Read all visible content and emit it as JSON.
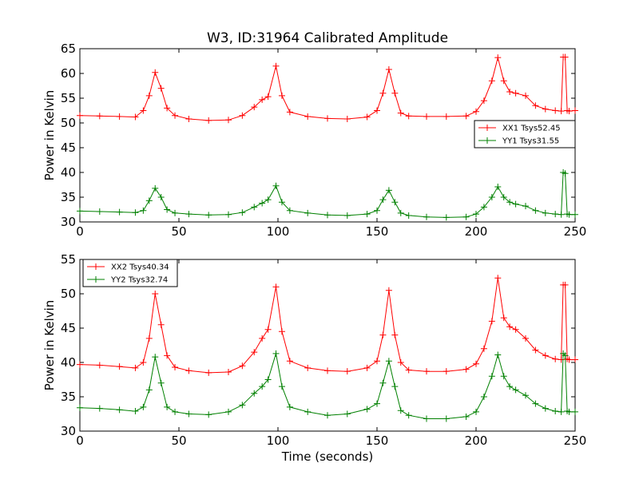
{
  "colors": {
    "xx": "#ff0000",
    "yy": "#008000",
    "axis": "#000000",
    "background": "#ffffff"
  },
  "chart_data": [
    {
      "type": "line",
      "title": "W3, ID:31964 Calibrated Amplitude",
      "xlabel": "",
      "ylabel": "Power in Kelvin",
      "xlim": [
        0,
        250
      ],
      "ylim": [
        30,
        65
      ],
      "xticks": [
        "0",
        "50",
        "100",
        "150",
        "200",
        "250"
      ],
      "yticks": [
        "30",
        "35",
        "40",
        "45",
        "50",
        "55",
        "60",
        "65"
      ],
      "grid": false,
      "legend_position": "center-right",
      "marker": "plus",
      "series": [
        {
          "name": "XX1 Tsys52.45",
          "color": "#ff0000",
          "x": [
            0,
            10,
            20,
            28,
            32,
            35,
            38,
            41,
            44,
            48,
            55,
            65,
            75,
            82,
            88,
            92,
            95,
            99,
            102,
            106,
            115,
            125,
            135,
            145,
            150,
            153,
            156,
            159,
            162,
            166,
            175,
            185,
            195,
            200,
            204,
            208,
            211,
            214,
            217,
            220,
            225,
            230,
            235,
            240,
            243,
            244,
            245,
            246,
            247,
            250
          ],
          "y": [
            51.5,
            51.4,
            51.3,
            51.2,
            52.5,
            55.5,
            60.2,
            57,
            53,
            51.5,
            50.8,
            50.5,
            50.6,
            51.5,
            53.2,
            54.7,
            55.3,
            61.5,
            55.5,
            52.2,
            51.3,
            50.9,
            50.8,
            51.2,
            52.5,
            56,
            60.8,
            56,
            52,
            51.4,
            51.3,
            51.3,
            51.4,
            52.3,
            54.5,
            58.5,
            63.2,
            58.5,
            56.3,
            56,
            55.5,
            53.5,
            52.8,
            52.5,
            52.4,
            63.3,
            63.3,
            52.5,
            52.4,
            52.5
          ]
        },
        {
          "name": "YY1 Tsys31.55",
          "color": "#008000",
          "x": [
            0,
            10,
            20,
            28,
            32,
            35,
            38,
            41,
            44,
            48,
            55,
            65,
            75,
            82,
            88,
            92,
            95,
            99,
            102,
            106,
            115,
            125,
            135,
            145,
            150,
            153,
            156,
            159,
            162,
            166,
            175,
            185,
            195,
            200,
            204,
            208,
            211,
            214,
            217,
            220,
            225,
            230,
            235,
            240,
            243,
            244,
            245,
            246,
            247,
            250
          ],
          "y": [
            32.2,
            32.1,
            32,
            31.9,
            32.3,
            34.3,
            36.8,
            35,
            32.5,
            31.8,
            31.6,
            31.4,
            31.5,
            31.9,
            33,
            33.8,
            34.5,
            37.3,
            34,
            32.3,
            31.8,
            31.4,
            31.3,
            31.6,
            32.3,
            34.5,
            36.4,
            34,
            31.8,
            31.3,
            31,
            30.9,
            31,
            31.6,
            33,
            35,
            37.1,
            35,
            34,
            33.6,
            33.2,
            32.3,
            31.8,
            31.6,
            31.5,
            40,
            39.8,
            31.6,
            31.5,
            31.5
          ]
        }
      ]
    },
    {
      "type": "line",
      "title": "",
      "xlabel": "Time (seconds)",
      "ylabel": "Power in Kelvin",
      "xlim": [
        0,
        250
      ],
      "ylim": [
        30,
        55
      ],
      "xticks": [
        "0",
        "50",
        "100",
        "150",
        "200",
        "250"
      ],
      "yticks": [
        "30",
        "35",
        "40",
        "45",
        "50",
        "55"
      ],
      "grid": false,
      "legend_position": "top-left",
      "marker": "plus",
      "series": [
        {
          "name": "XX2 Tsys40.34",
          "color": "#ff0000",
          "x": [
            0,
            10,
            20,
            28,
            32,
            35,
            38,
            41,
            44,
            48,
            55,
            65,
            75,
            82,
            88,
            92,
            95,
            99,
            102,
            106,
            115,
            125,
            135,
            145,
            150,
            153,
            156,
            159,
            162,
            166,
            175,
            185,
            195,
            200,
            204,
            208,
            211,
            214,
            217,
            220,
            225,
            230,
            235,
            240,
            243,
            244,
            245,
            246,
            247,
            250
          ],
          "y": [
            39.7,
            39.6,
            39.4,
            39.2,
            40,
            43.5,
            50,
            45.5,
            41,
            39.3,
            38.8,
            38.5,
            38.6,
            39.5,
            41.5,
            43.5,
            44.8,
            51,
            44.5,
            40.2,
            39.2,
            38.8,
            38.7,
            39.2,
            40.2,
            44,
            50.5,
            44,
            40,
            38.9,
            38.7,
            38.7,
            39,
            39.8,
            42,
            46,
            52.3,
            46.5,
            45.2,
            44.8,
            43.5,
            41.8,
            41,
            40.5,
            40.4,
            51.3,
            51.3,
            40.5,
            40.4,
            40.4
          ]
        },
        {
          "name": "YY2 Tsys32.74",
          "color": "#008000",
          "x": [
            0,
            10,
            20,
            28,
            32,
            35,
            38,
            41,
            44,
            48,
            55,
            65,
            75,
            82,
            88,
            92,
            95,
            99,
            102,
            106,
            115,
            125,
            135,
            145,
            150,
            153,
            156,
            159,
            162,
            166,
            175,
            185,
            195,
            200,
            204,
            208,
            211,
            214,
            217,
            220,
            225,
            230,
            235,
            240,
            243,
            244,
            245,
            246,
            247,
            250
          ],
          "y": [
            33.4,
            33.3,
            33.1,
            32.9,
            33.5,
            36,
            40.8,
            37,
            33.5,
            32.8,
            32.5,
            32.4,
            32.8,
            33.8,
            35.5,
            36.5,
            37.5,
            41.3,
            36.5,
            33.5,
            32.8,
            32.3,
            32.5,
            33.2,
            34,
            37,
            40.2,
            36.5,
            33,
            32.3,
            31.8,
            31.8,
            32.1,
            32.8,
            35,
            38,
            41.1,
            38,
            36.5,
            36,
            35.2,
            34,
            33.3,
            32.9,
            32.8,
            41.3,
            41,
            32.9,
            32.8,
            32.8
          ]
        }
      ]
    }
  ]
}
